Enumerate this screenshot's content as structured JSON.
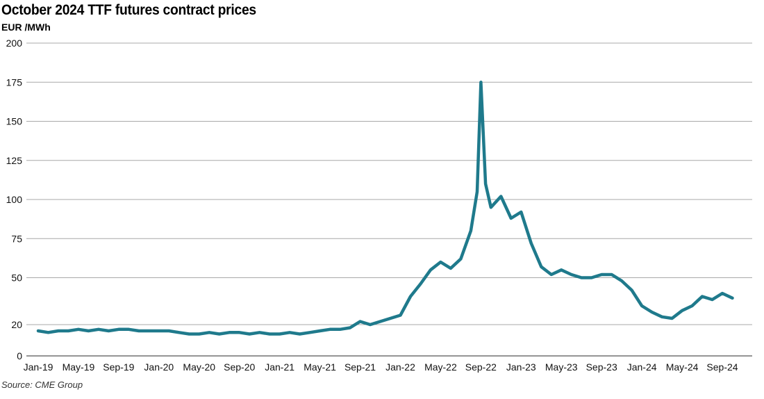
{
  "chart_data": {
    "type": "line",
    "title": "October 2024 TTF futures contract prices",
    "ylabel": "EUR /MWh",
    "xlabel": "",
    "source": "Source: CME Group",
    "ylim": [
      0,
      200
    ],
    "yticks": [
      0,
      20,
      50,
      75,
      100,
      125,
      150,
      175,
      200
    ],
    "grid": true,
    "legend": "none",
    "line_color": "#1f7a8c",
    "x_ticks": [
      "Jan-19",
      "May-19",
      "Sep-19",
      "Jan-20",
      "May-20",
      "Sep-20",
      "Jan-21",
      "May-21",
      "Sep-21",
      "Jan-22",
      "May-22",
      "Sep-22",
      "Jan-23",
      "May-23",
      "Sep-23",
      "Jan-24",
      "May-24",
      "Sep-24"
    ],
    "x_range": [
      "2019-01",
      "2024-10"
    ],
    "series": [
      {
        "x": [
          "2019-01",
          "2019-02",
          "2019-03",
          "2019-04",
          "2019-05",
          "2019-06",
          "2019-07",
          "2019-08",
          "2019-09",
          "2019-10",
          "2019-11",
          "2019-12",
          "2020-01",
          "2020-02",
          "2020-03",
          "2020-04",
          "2020-05",
          "2020-06",
          "2020-07",
          "2020-08",
          "2020-09",
          "2020-10",
          "2020-11",
          "2020-12",
          "2021-01",
          "2021-02",
          "2021-03",
          "2021-04",
          "2021-05",
          "2021-06",
          "2021-07",
          "2021-08",
          "2021-09",
          "2021-10",
          "2021-11",
          "2021-12",
          "2022-01",
          "2022-02",
          "2022-03",
          "2022-04",
          "2022-05",
          "2022-06",
          "2022-07",
          "2022-08",
          "2022-08-20",
          "2022-09",
          "2022-09-15",
          "2022-10",
          "2022-11",
          "2022-12",
          "2023-01",
          "2023-02",
          "2023-03",
          "2023-04",
          "2023-05",
          "2023-06",
          "2023-07",
          "2023-08",
          "2023-09",
          "2023-10",
          "2023-11",
          "2023-12",
          "2024-01",
          "2024-02",
          "2024-03",
          "2024-04",
          "2024-05",
          "2024-06",
          "2024-07",
          "2024-08",
          "2024-09",
          "2024-10"
        ],
        "y": [
          16,
          15,
          16,
          16,
          17,
          16,
          17,
          16,
          17,
          17,
          16,
          16,
          16,
          16,
          15,
          14,
          14,
          15,
          14,
          15,
          15,
          14,
          15,
          14,
          14,
          15,
          14,
          15,
          16,
          17,
          17,
          18,
          22,
          20,
          22,
          24,
          26,
          38,
          46,
          55,
          60,
          56,
          62,
          80,
          105,
          175,
          110,
          95,
          102,
          88,
          92,
          72,
          57,
          52,
          55,
          52,
          50,
          50,
          52,
          52,
          48,
          42,
          32,
          28,
          25,
          24,
          29,
          32,
          38,
          36,
          40,
          37
        ]
      }
    ]
  }
}
